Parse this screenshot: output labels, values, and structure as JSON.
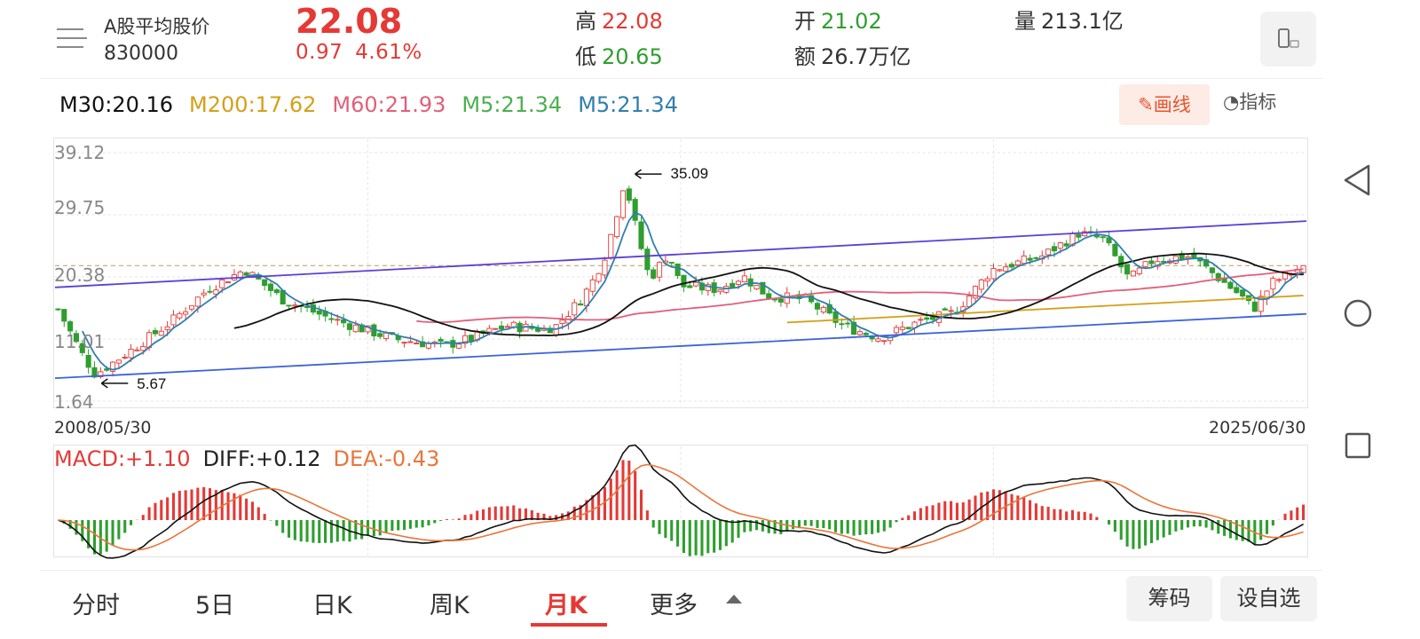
{
  "stock": {
    "name": "A股平均股价",
    "code": "830000",
    "price": "22.08",
    "change": "0.97",
    "change_pct": "4.61%",
    "high_label": "高",
    "high": "22.08",
    "low_label": "低",
    "low": "20.65",
    "open_label": "开",
    "open": "21.02",
    "amount_label": "额",
    "amount": "26.7万亿",
    "volume_label": "量",
    "volume": "213.1亿"
  },
  "icons": {
    "menu": "menu-icon",
    "phone": "landscape-phone-icon",
    "pencil": "pencil-icon",
    "gauge": "gauge-icon",
    "nav_back": "triangle-back-icon",
    "nav_home": "circle-home-icon",
    "nav_recent": "square-recent-icon"
  },
  "ma": {
    "m30": "M30:20.16",
    "m200": "M200:17.62",
    "m60": "M60:21.93",
    "m5a": "M5:21.34",
    "m5b": "M5:21.34"
  },
  "toolbar": {
    "draw_label": "画线",
    "indicator_label": "指标"
  },
  "chart": {
    "y_labels": [
      "39.12",
      "29.75",
      "20.38",
      "11.01",
      "1.64"
    ],
    "start_date": "2008/05/30",
    "end_date": "2025/06/30",
    "max_marker": "35.09",
    "min_marker": "5.67"
  },
  "macd": {
    "macd": "MACD:+1.10",
    "diff": "DIFF:+0.12",
    "dea": "DEA:-0.43"
  },
  "tabs": [
    {
      "label": "分时"
    },
    {
      "label": "5日"
    },
    {
      "label": "日K"
    },
    {
      "label": "周K"
    },
    {
      "label": "月K",
      "active": true
    },
    {
      "label": "更多"
    }
  ],
  "buttons": {
    "chips": "筹码",
    "add_watch": "设自选"
  },
  "colors": {
    "up": "#e53935",
    "down": "#2e9e2e",
    "m30": "#111111",
    "m200": "#d4a017",
    "m60": "#e0607a",
    "m5_green": "#4caf50",
    "m5_blue": "#2f7fb0",
    "channel_top": "#5b3fd6",
    "channel_bottom": "#3a63d8",
    "accent": "#e8542f"
  },
  "chart_data": {
    "type": "candlestick",
    "period": "monthly",
    "x_range": [
      "2008/05/30",
      "2025/06/30"
    ],
    "y_ticks": [
      1.64,
      11.01,
      20.38,
      29.75,
      39.12
    ],
    "ylim": [
      1.64,
      39.12
    ],
    "last": {
      "open": 21.02,
      "high": 22.08,
      "low": 20.65,
      "close": 22.08
    },
    "max": 35.09,
    "min": 5.67,
    "moving_averages": [
      {
        "name": "M30",
        "value": 20.16
      },
      {
        "name": "M200",
        "value": 17.62
      },
      {
        "name": "M60",
        "value": 21.93
      },
      {
        "name": "M5",
        "value": 21.34
      }
    ],
    "trend_path": [
      {
        "t": 0.0,
        "v": 15.5
      },
      {
        "t": 0.02,
        "v": 8.5
      },
      {
        "t": 0.03,
        "v": 5.67
      },
      {
        "t": 0.06,
        "v": 9.5
      },
      {
        "t": 0.09,
        "v": 13.5
      },
      {
        "t": 0.12,
        "v": 18.5
      },
      {
        "t": 0.15,
        "v": 21.5
      },
      {
        "t": 0.18,
        "v": 17.0
      },
      {
        "t": 0.22,
        "v": 14.0
      },
      {
        "t": 0.27,
        "v": 11.0
      },
      {
        "t": 0.31,
        "v": 10.0
      },
      {
        "t": 0.33,
        "v": 11.0
      },
      {
        "t": 0.36,
        "v": 13.0
      },
      {
        "t": 0.39,
        "v": 12.5
      },
      {
        "t": 0.4,
        "v": 13.0
      },
      {
        "t": 0.41,
        "v": 15.0
      },
      {
        "t": 0.42,
        "v": 17.0
      },
      {
        "t": 0.43,
        "v": 20.0
      },
      {
        "t": 0.44,
        "v": 24.0
      },
      {
        "t": 0.45,
        "v": 31.0
      },
      {
        "t": 0.455,
        "v": 35.09
      },
      {
        "t": 0.465,
        "v": 27.0
      },
      {
        "t": 0.475,
        "v": 20.0
      },
      {
        "t": 0.49,
        "v": 24.0
      },
      {
        "t": 0.5,
        "v": 19.0
      },
      {
        "t": 0.53,
        "v": 18.5
      },
      {
        "t": 0.55,
        "v": 20.5
      },
      {
        "t": 0.57,
        "v": 17.5
      },
      {
        "t": 0.6,
        "v": 17.0
      },
      {
        "t": 0.63,
        "v": 13.0
      },
      {
        "t": 0.66,
        "v": 11.2
      },
      {
        "t": 0.69,
        "v": 13.5
      },
      {
        "t": 0.72,
        "v": 15.0
      },
      {
        "t": 0.75,
        "v": 21.5
      },
      {
        "t": 0.79,
        "v": 23.5
      },
      {
        "t": 0.82,
        "v": 27.0
      },
      {
        "t": 0.84,
        "v": 26.0
      },
      {
        "t": 0.86,
        "v": 20.0
      },
      {
        "t": 0.88,
        "v": 23.0
      },
      {
        "t": 0.91,
        "v": 23.5
      },
      {
        "t": 0.93,
        "v": 20.5
      },
      {
        "t": 0.95,
        "v": 17.5
      },
      {
        "t": 0.96,
        "v": 15.5
      },
      {
        "t": 0.975,
        "v": 19.5
      },
      {
        "t": 0.99,
        "v": 21.0
      },
      {
        "t": 1.0,
        "v": 22.08
      }
    ]
  }
}
